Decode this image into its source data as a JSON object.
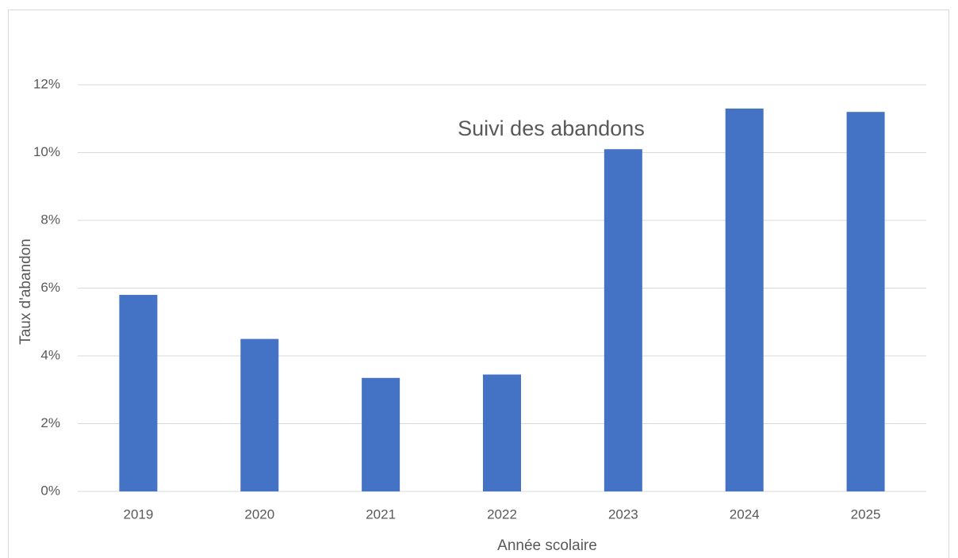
{
  "chart_data": {
    "type": "bar",
    "title": "Suivi des abandons",
    "x_label": "Année scolaire",
    "y_label": "Taux d'abandon",
    "categories": [
      "2019",
      "2020",
      "2021",
      "2022",
      "2023",
      "2024",
      "2025"
    ],
    "values": [
      5.8,
      4.5,
      3.35,
      3.45,
      10.1,
      11.3,
      11.2
    ],
    "color": "#4472c4",
    "ylim": [
      0,
      12
    ],
    "yticks": [
      {
        "value": 0,
        "label": "0%"
      },
      {
        "value": 2,
        "label": "2%"
      },
      {
        "value": 4,
        "label": "4%"
      },
      {
        "value": 6,
        "label": "6%"
      },
      {
        "value": 8,
        "label": "8%"
      },
      {
        "value": 10,
        "label": "10%"
      },
      {
        "value": 12,
        "label": "12%"
      }
    ],
    "grid": true
  }
}
